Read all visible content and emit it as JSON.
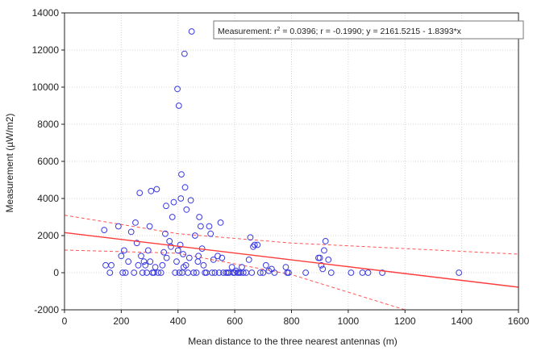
{
  "chart_data": {
    "type": "scatter",
    "xlabel": "Mean distance to the three nearest antennas (m)",
    "ylabel": "Measurement (µW/m2)",
    "xlim": [
      0,
      1600
    ],
    "ylim": [
      -2000,
      14000
    ],
    "x_ticks": [
      "0",
      "200",
      "400",
      "600",
      "800",
      "1000",
      "1200",
      "1400",
      "1600"
    ],
    "y_ticks": [
      "-2000",
      "0",
      "2000",
      "4000",
      "6000",
      "8000",
      "10000",
      "12000",
      "14000"
    ],
    "grid": true,
    "annotation": {
      "label": "Measurement:",
      "r2_prefix": "r",
      "r2_exp": "2",
      "r2_value": " = 0.0396;",
      "r_text": "r = -0.1990;",
      "eq_text": "y = 2161.5215 - 1.8393*x"
    },
    "regression": {
      "intercept": 2161.5215,
      "slope": -1.8393,
      "color": "#ff3b3b"
    },
    "confidence_band": {
      "upper": [
        [
          0,
          3100
        ],
        [
          400,
          2100
        ],
        [
          800,
          1600
        ],
        [
          1600,
          1000
        ]
      ],
      "lower": [
        [
          0,
          1220
        ],
        [
          400,
          1050
        ],
        [
          800,
          -100
        ],
        [
          1200,
          -2000
        ]
      ],
      "color": "#ff5555"
    },
    "marker_color": "#3a3ae0",
    "points": [
      [
        140,
        2300
      ],
      [
        145,
        400
      ],
      [
        160,
        0
      ],
      [
        165,
        400
      ],
      [
        190,
        2500
      ],
      [
        200,
        900
      ],
      [
        205,
        0
      ],
      [
        210,
        1200
      ],
      [
        215,
        0
      ],
      [
        225,
        600
      ],
      [
        235,
        2200
      ],
      [
        245,
        0
      ],
      [
        250,
        2700
      ],
      [
        255,
        1600
      ],
      [
        260,
        400
      ],
      [
        265,
        4300
      ],
      [
        270,
        900
      ],
      [
        275,
        0
      ],
      [
        280,
        600
      ],
      [
        285,
        400
      ],
      [
        290,
        0
      ],
      [
        295,
        1200
      ],
      [
        300,
        2500
      ],
      [
        302,
        600
      ],
      [
        305,
        4400
      ],
      [
        310,
        0
      ],
      [
        315,
        0
      ],
      [
        320,
        300
      ],
      [
        325,
        4500
      ],
      [
        330,
        0
      ],
      [
        340,
        0
      ],
      [
        345,
        400
      ],
      [
        350,
        1100
      ],
      [
        355,
        2100
      ],
      [
        358,
        3600
      ],
      [
        360,
        800
      ],
      [
        370,
        1700
      ],
      [
        375,
        1400
      ],
      [
        380,
        3000
      ],
      [
        385,
        3800
      ],
      [
        390,
        0
      ],
      [
        395,
        600
      ],
      [
        398,
        9900
      ],
      [
        400,
        1200
      ],
      [
        403,
        9000
      ],
      [
        405,
        0
      ],
      [
        408,
        1500
      ],
      [
        410,
        4000
      ],
      [
        412,
        5300
      ],
      [
        415,
        0
      ],
      [
        418,
        1000
      ],
      [
        420,
        300
      ],
      [
        423,
        11800
      ],
      [
        425,
        4600
      ],
      [
        428,
        400
      ],
      [
        430,
        3400
      ],
      [
        435,
        0
      ],
      [
        440,
        800
      ],
      [
        445,
        3900
      ],
      [
        448,
        13000
      ],
      [
        455,
        0
      ],
      [
        460,
        2000
      ],
      [
        465,
        0
      ],
      [
        470,
        600
      ],
      [
        472,
        900
      ],
      [
        475,
        3000
      ],
      [
        480,
        2500
      ],
      [
        485,
        1300
      ],
      [
        490,
        400
      ],
      [
        495,
        0
      ],
      [
        500,
        0
      ],
      [
        510,
        2500
      ],
      [
        515,
        2100
      ],
      [
        520,
        0
      ],
      [
        525,
        700
      ],
      [
        530,
        0
      ],
      [
        540,
        900
      ],
      [
        545,
        0
      ],
      [
        550,
        2700
      ],
      [
        555,
        800
      ],
      [
        560,
        0
      ],
      [
        570,
        0
      ],
      [
        575,
        0
      ],
      [
        580,
        0
      ],
      [
        590,
        300
      ],
      [
        595,
        0
      ],
      [
        600,
        0
      ],
      [
        605,
        100
      ],
      [
        610,
        0
      ],
      [
        615,
        0
      ],
      [
        620,
        0
      ],
      [
        625,
        300
      ],
      [
        630,
        0
      ],
      [
        640,
        0
      ],
      [
        650,
        700
      ],
      [
        655,
        1900
      ],
      [
        660,
        0
      ],
      [
        665,
        1400
      ],
      [
        670,
        1500
      ],
      [
        680,
        1500
      ],
      [
        690,
        0
      ],
      [
        700,
        0
      ],
      [
        710,
        400
      ],
      [
        720,
        100
      ],
      [
        730,
        200
      ],
      [
        740,
        0
      ],
      [
        780,
        300
      ],
      [
        785,
        0
      ],
      [
        790,
        0
      ],
      [
        850,
        0
      ],
      [
        895,
        800
      ],
      [
        900,
        800
      ],
      [
        905,
        400
      ],
      [
        910,
        200
      ],
      [
        915,
        1200
      ],
      [
        920,
        1700
      ],
      [
        930,
        700
      ],
      [
        940,
        0
      ],
      [
        1010,
        0
      ],
      [
        1050,
        0
      ],
      [
        1070,
        0
      ],
      [
        1120,
        0
      ],
      [
        1390,
        0
      ]
    ]
  }
}
